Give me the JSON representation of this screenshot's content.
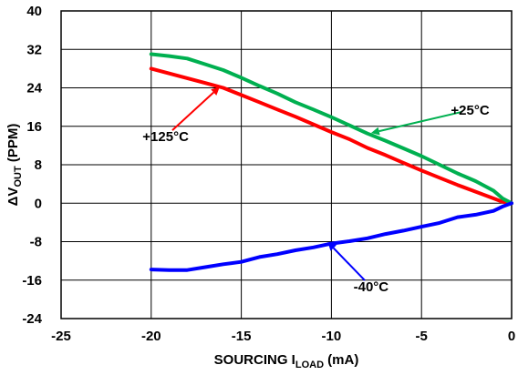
{
  "chart_data": {
    "type": "line",
    "title": "",
    "xlabel": {
      "main": "SOURCING I",
      "sub": "LOAD",
      "unit": " (mA)"
    },
    "ylabel": {
      "prefix": "ΔV",
      "sub": "OUT",
      "unit": " (PPM)"
    },
    "xlim": [
      -25,
      0
    ],
    "ylim": [
      -24,
      40
    ],
    "x_ticks": [
      -25,
      -20,
      -15,
      -10,
      -5,
      0
    ],
    "y_ticks": [
      -24,
      -16,
      -8,
      0,
      8,
      16,
      24,
      32,
      40
    ],
    "x_tick_labels": [
      "-25",
      "-20",
      "-15",
      "-10",
      "-5",
      "0"
    ],
    "y_tick_labels": [
      "-24",
      "-16",
      "-8",
      "0",
      "8",
      "16",
      "24",
      "32",
      "40"
    ],
    "grid": true,
    "series": [
      {
        "name": "+125°C",
        "color": "#ff0000",
        "x": [
          -20,
          -19,
          -18,
          -17,
          -16,
          -15,
          -14,
          -13,
          -12,
          -11,
          -10,
          -9,
          -8,
          -7,
          -6,
          -5,
          -4,
          -3,
          -2,
          -1,
          -0.5,
          0
        ],
        "y": [
          28,
          27,
          26,
          25,
          24,
          22.5,
          21,
          19.5,
          18,
          16.4,
          14.8,
          13.3,
          11.5,
          10,
          8.4,
          6.8,
          5.3,
          3.8,
          2.4,
          1,
          0.3,
          0
        ]
      },
      {
        "name": "+25°C",
        "color": "#00b050",
        "x": [
          -20,
          -19,
          -18,
          -17,
          -16,
          -15,
          -14,
          -13,
          -12,
          -11,
          -10,
          -9,
          -8,
          -7,
          -6,
          -5,
          -4,
          -3,
          -2,
          -1,
          -0.5,
          0
        ],
        "y": [
          31,
          30.6,
          30.1,
          28.9,
          27.7,
          26.1,
          24.4,
          22.8,
          21,
          19.5,
          17.9,
          16.2,
          14.5,
          13,
          11.4,
          9.8,
          8,
          6.2,
          4.6,
          2.6,
          1,
          0
        ]
      },
      {
        "name": "-40°C",
        "color": "#0000ff",
        "x": [
          -20,
          -19,
          -18,
          -17,
          -16,
          -15,
          -14,
          -13,
          -12,
          -11,
          -10,
          -9,
          -8,
          -7,
          -6,
          -5,
          -4,
          -3,
          -2,
          -1,
          -0.5,
          0
        ],
        "y": [
          -13.8,
          -13.9,
          -13.9,
          -13.3,
          -12.7,
          -12.2,
          -11.2,
          -10.6,
          -9.8,
          -9.2,
          -8.4,
          -7.9,
          -7.3,
          -6.4,
          -5.7,
          -4.9,
          -4.1,
          -2.9,
          -2.4,
          -1.6,
          -0.7,
          0
        ]
      }
    ],
    "annotations": [
      {
        "text": "+125°C",
        "series": "+125°C",
        "x_text": -19.2,
        "y_text": 13.9,
        "x_arrow": -16.2,
        "y_arrow": 24.2
      },
      {
        "text": "+25°C",
        "series": "+25°C",
        "x_text": -2.3,
        "y_text": 19.4,
        "x_arrow": -7.8,
        "y_arrow": 14.6
      },
      {
        "text": "-40°C",
        "series": "-40°C",
        "x_text": -7.8,
        "y_text": -17.4,
        "x_arrow": -10.2,
        "y_arrow": -8.1
      }
    ]
  }
}
